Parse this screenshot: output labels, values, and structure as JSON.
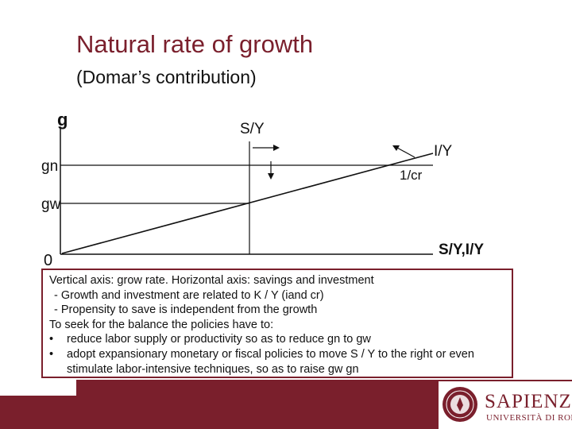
{
  "slide": {
    "title": "Natural rate of growth",
    "subtitle": "(Domar’s contribution)"
  },
  "diagram": {
    "y_axis_label": "g",
    "x_axis_label": "S/Y,I/Y",
    "origin_label": "0",
    "gn_label": "gn",
    "gw_label": "gw",
    "sy_label": "S/Y",
    "iy_label": "I/Y",
    "slope_label": "1/cr",
    "colors": {
      "axis": "#111111",
      "arrow": "#111111"
    }
  },
  "notes": {
    "line1": "Vertical axis: grow rate. Horizontal axis: savings and investment",
    "line2": "- Growth and investment are related to K / Y (iand cr)",
    "line3": "- Propensity to save is independent from the growth",
    "line4": "To seek for the balance the policies have to:",
    "bullet1": "reduce labor supply or productivity so as to reduce gn to gw",
    "bullet2": "adopt expansionary monetary or fiscal policies to move S / Y to the right or even stimulate labor-intensive techniques, so as to raise gw gn",
    "bullet_symbol": "•"
  },
  "logo": {
    "name": "SAPIENZA",
    "sub": "UNIVERSITÀ DI ROMA",
    "accent": "#7a1f2c"
  }
}
